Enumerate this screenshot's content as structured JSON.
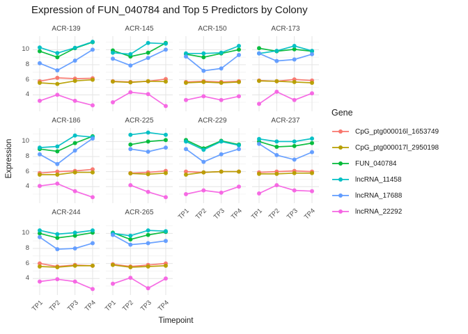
{
  "title": "Expression of FUN_040784 and Top 5 Predictors by Colony",
  "axes": {
    "x_title": "Timepoint",
    "y_title": "Expression"
  },
  "legend": {
    "title": "Gene"
  },
  "chart_data": {
    "type": "line",
    "title": "Expression of FUN_040784 and Top 5 Predictors by Colony",
    "xlabel": "Timepoint",
    "ylabel": "Expression",
    "x": [
      "TP1",
      "TP2",
      "TP3",
      "TP4"
    ],
    "y_ticks": [
      4,
      6,
      8,
      10
    ],
    "y_minor": [
      3,
      5,
      7,
      9,
      11
    ],
    "ylim": [
      1.8,
      11.8
    ],
    "grid": true,
    "legend_position": "right",
    "facet_layout": {
      "columns": 4,
      "rows": 3
    },
    "genes": [
      {
        "name": "CpG_ptg000016l_1653749",
        "color": "#F8766D"
      },
      {
        "name": "CpG_ptg000017l_2950198",
        "color": "#B79F00"
      },
      {
        "name": "FUN_040784",
        "color": "#00BA38"
      },
      {
        "name": "lncRNA_11458",
        "color": "#00BFC4"
      },
      {
        "name": "lncRNA_17688",
        "color": "#619CFF"
      },
      {
        "name": "lncRNA_22292",
        "color": "#F564E3"
      }
    ],
    "facets": [
      {
        "name": "ACR-139",
        "values": [
          [
            5.8,
            6.25,
            6.15,
            6.2
          ],
          [
            5.6,
            5.45,
            5.85,
            6.0
          ],
          [
            9.8,
            9.0,
            10.2,
            11.0
          ],
          [
            10.3,
            9.55,
            10.25,
            11.05
          ],
          [
            8.2,
            7.25,
            8.55,
            10.0
          ],
          [
            3.2,
            4.0,
            3.2,
            2.6
          ]
        ]
      },
      {
        "name": "ACR-145",
        "values": [
          [
            5.8,
            5.7,
            5.8,
            6.1
          ],
          [
            5.75,
            5.65,
            5.8,
            5.75
          ],
          [
            9.9,
            9.1,
            9.6,
            10.9
          ],
          [
            9.6,
            9.4,
            10.9,
            10.8
          ],
          [
            8.8,
            7.9,
            8.9,
            10.0
          ],
          [
            3.0,
            4.35,
            4.1,
            2.5
          ]
        ]
      },
      {
        "name": "ACR-150",
        "values": [
          [
            5.7,
            5.8,
            5.7,
            5.8
          ],
          [
            5.6,
            5.7,
            5.6,
            5.7
          ],
          [
            9.4,
            9.0,
            9.5,
            10.0
          ],
          [
            9.5,
            9.5,
            9.6,
            10.5
          ],
          [
            9.1,
            7.2,
            7.5,
            9.3
          ],
          [
            3.3,
            3.8,
            3.3,
            3.8
          ]
        ]
      },
      {
        "name": "ACR-173",
        "values": [
          [
            5.9,
            5.8,
            6.05,
            5.9
          ],
          [
            5.85,
            5.8,
            5.7,
            5.6
          ],
          [
            10.2,
            9.8,
            10.05,
            9.8
          ],
          [
            9.5,
            9.85,
            10.5,
            9.85
          ],
          [
            9.5,
            8.5,
            8.7,
            9.4
          ],
          [
            2.8,
            4.4,
            3.3,
            4.2
          ]
        ]
      },
      {
        "name": "ACR-186",
        "values": [
          [
            5.8,
            6.0,
            6.1,
            6.3
          ],
          [
            5.6,
            5.6,
            5.9,
            5.9
          ],
          [
            9.0,
            8.7,
            9.8,
            10.7
          ],
          [
            9.2,
            9.35,
            10.8,
            10.6
          ],
          [
            8.3,
            7.0,
            8.8,
            10.4
          ],
          [
            4.1,
            4.4,
            3.4,
            2.6
          ]
        ]
      },
      {
        "name": "ACR-225",
        "values": [
          [
            null,
            5.8,
            5.9,
            6.1
          ],
          [
            null,
            5.75,
            5.65,
            5.8
          ],
          [
            null,
            9.6,
            10.0,
            10.2
          ],
          [
            null,
            10.9,
            11.2,
            10.9
          ],
          [
            null,
            9.0,
            8.65,
            9.2
          ],
          [
            null,
            4.2,
            3.3,
            2.6
          ]
        ]
      },
      {
        "name": "ACR-229",
        "values": [
          [
            6.0,
            5.9,
            6.0,
            6.0
          ],
          [
            5.6,
            5.9,
            6.0,
            6.0
          ],
          [
            10.2,
            9.1,
            10.1,
            9.6
          ],
          [
            10.0,
            8.9,
            10.0,
            9.5
          ],
          [
            9.0,
            7.3,
            8.3,
            9.0
          ],
          [
            3.0,
            3.5,
            3.2,
            4.0
          ]
        ]
      },
      {
        "name": "ACR-237",
        "values": [
          [
            5.9,
            6.0,
            6.1,
            6.0
          ],
          [
            5.7,
            5.7,
            5.8,
            5.8
          ],
          [
            10.0,
            9.3,
            9.4,
            9.8
          ],
          [
            10.35,
            10.0,
            10.0,
            10.4
          ],
          [
            9.7,
            8.2,
            7.6,
            8.6
          ],
          [
            3.1,
            4.2,
            3.5,
            3.4
          ]
        ]
      },
      {
        "name": "ACR-244",
        "values": [
          [
            6.0,
            5.6,
            5.8,
            5.7
          ],
          [
            5.6,
            5.5,
            5.7,
            5.7
          ],
          [
            10.0,
            9.4,
            9.7,
            10.1
          ],
          [
            10.4,
            9.9,
            10.1,
            10.4
          ],
          [
            9.5,
            7.9,
            8.0,
            8.7
          ],
          [
            3.6,
            3.9,
            3.6,
            2.6
          ]
        ]
      },
      {
        "name": "ACR-265",
        "values": [
          [
            5.9,
            5.6,
            5.8,
            6.0
          ],
          [
            5.8,
            5.5,
            5.6,
            5.7
          ],
          [
            10.1,
            9.2,
            9.8,
            10.2
          ],
          [
            10.0,
            9.7,
            10.4,
            10.3
          ],
          [
            9.8,
            8.5,
            8.7,
            9.0
          ],
          [
            3.3,
            4.1,
            2.7,
            4.0
          ]
        ]
      }
    ]
  }
}
